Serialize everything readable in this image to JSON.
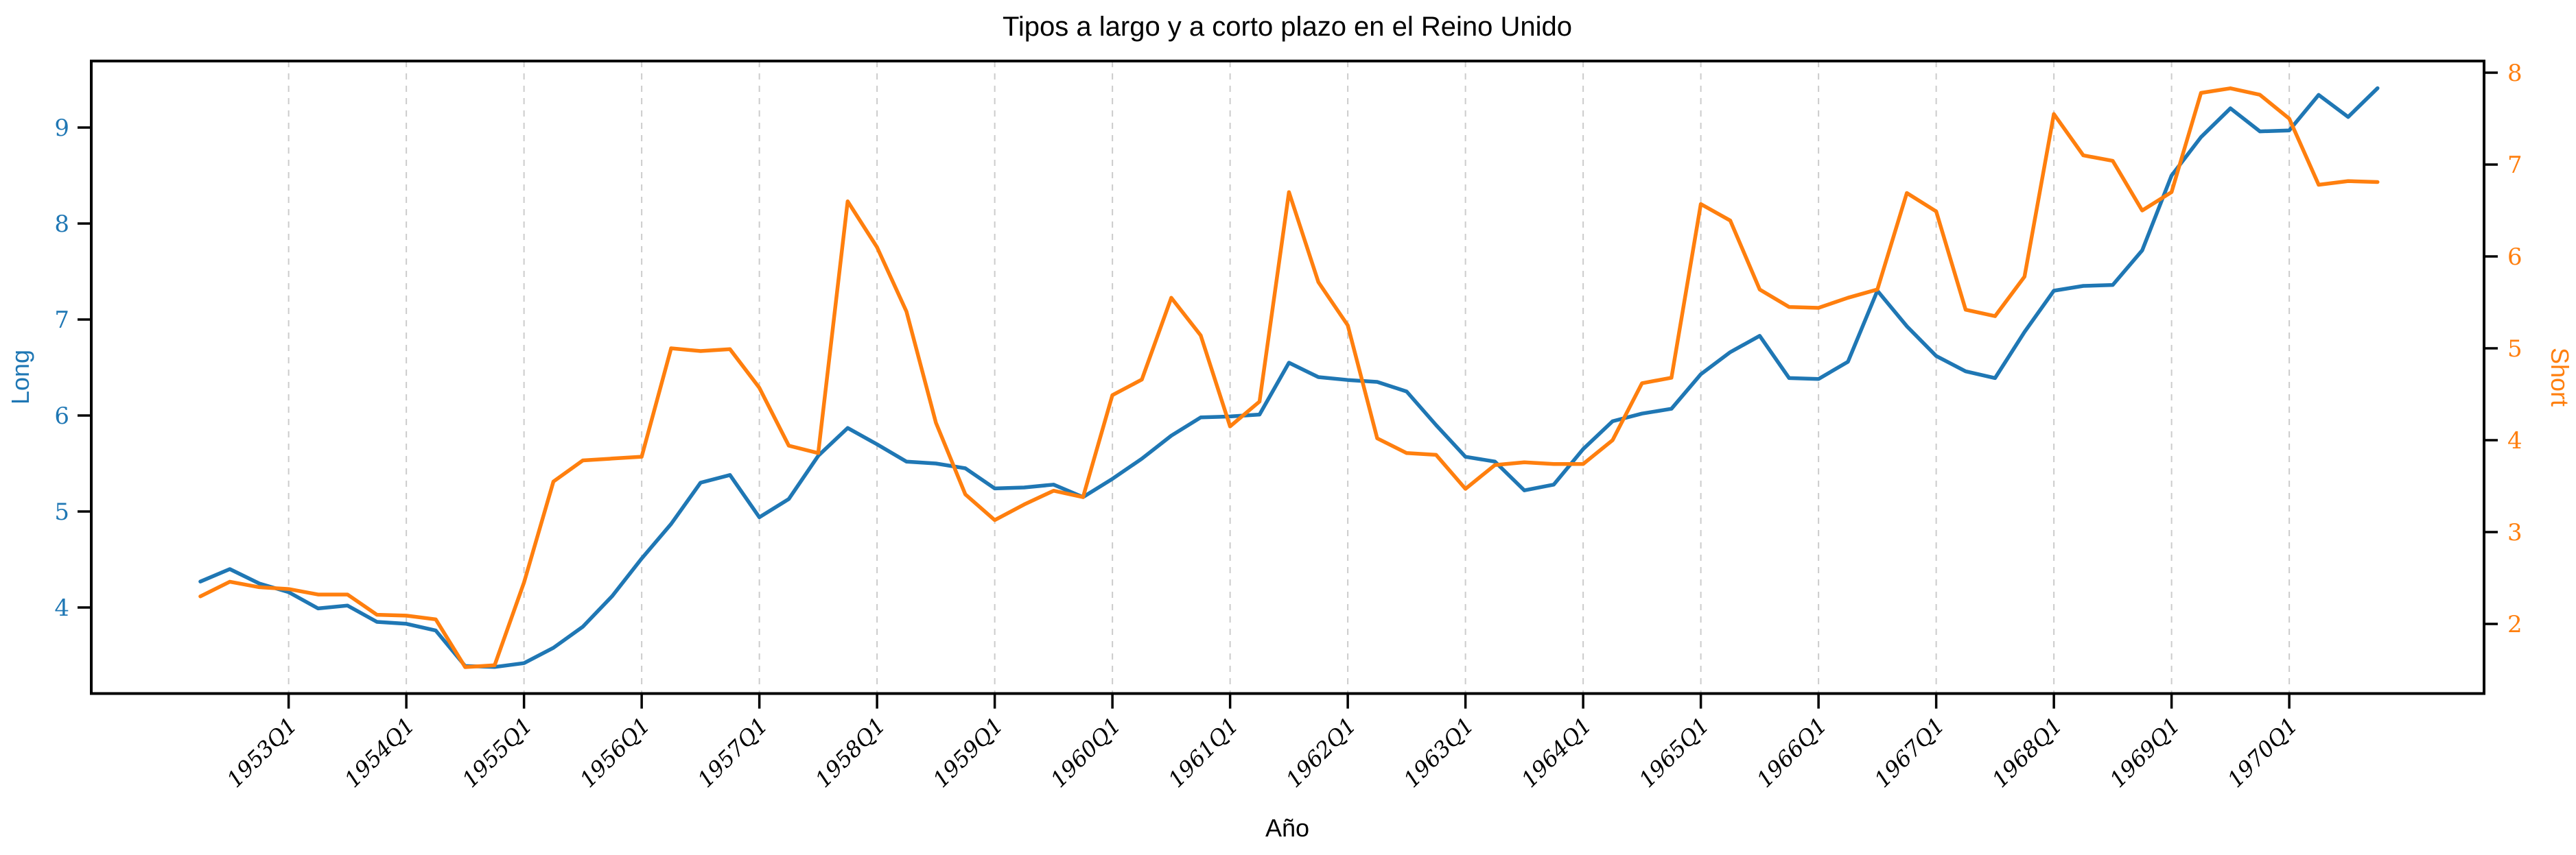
{
  "title": "Tipos a largo y a corto plazo en el Reino Unido",
  "chart_data": {
    "type": "line",
    "title": "Tipos a largo y a corto plazo en el Reino Unido",
    "xlabel": "Año",
    "grid": "vertical-dashed-per-year",
    "legend_position": "none",
    "frequency": "quarterly",
    "x": [
      "1952Q2",
      "1952Q3",
      "1952Q4",
      "1953Q1",
      "1953Q2",
      "1953Q3",
      "1953Q4",
      "1954Q1",
      "1954Q2",
      "1954Q3",
      "1954Q4",
      "1955Q1",
      "1955Q2",
      "1955Q3",
      "1955Q4",
      "1956Q1",
      "1956Q2",
      "1956Q3",
      "1956Q4",
      "1957Q1",
      "1957Q2",
      "1957Q3",
      "1957Q4",
      "1958Q1",
      "1958Q2",
      "1958Q3",
      "1958Q4",
      "1959Q1",
      "1959Q2",
      "1959Q3",
      "1959Q4",
      "1960Q1",
      "1960Q2",
      "1960Q3",
      "1960Q4",
      "1961Q1",
      "1961Q2",
      "1961Q3",
      "1961Q4",
      "1962Q1",
      "1962Q2",
      "1962Q3",
      "1962Q4",
      "1963Q1",
      "1963Q2",
      "1963Q3",
      "1963Q4",
      "1964Q1",
      "1964Q2",
      "1964Q3",
      "1964Q4",
      "1965Q1",
      "1965Q2",
      "1965Q3",
      "1965Q4",
      "1966Q1",
      "1966Q2",
      "1966Q3",
      "1966Q4",
      "1967Q1",
      "1967Q2",
      "1967Q3",
      "1967Q4",
      "1968Q1",
      "1968Q2",
      "1968Q3",
      "1968Q4",
      "1969Q1",
      "1969Q2",
      "1969Q3",
      "1969Q4",
      "1970Q1",
      "1970Q2",
      "1970Q3",
      "1970Q4"
    ],
    "x_tick_labels": [
      "1953Q1",
      "1954Q1",
      "1955Q1",
      "1956Q1",
      "1957Q1",
      "1958Q1",
      "1959Q1",
      "1960Q1",
      "1961Q1",
      "1962Q1",
      "1963Q1",
      "1964Q1",
      "1965Q1",
      "1966Q1",
      "1967Q1",
      "1968Q1",
      "1969Q1",
      "1970Q1"
    ],
    "series": [
      {
        "name": "Long",
        "axis": "left",
        "color": "#1f77b4",
        "values": [
          4.27,
          4.4,
          4.25,
          4.16,
          3.99,
          4.02,
          3.85,
          3.83,
          3.76,
          3.39,
          3.38,
          3.42,
          3.58,
          3.8,
          4.12,
          4.51,
          4.87,
          5.3,
          5.38,
          4.94,
          5.13,
          5.58,
          5.87,
          5.7,
          5.52,
          5.5,
          5.45,
          5.24,
          5.25,
          5.28,
          5.15,
          5.34,
          5.55,
          5.79,
          5.98,
          5.99,
          6.01,
          6.55,
          6.4,
          6.37,
          6.35,
          6.25,
          5.9,
          5.57,
          5.52,
          5.22,
          5.28,
          5.65,
          5.94,
          6.02,
          6.07,
          6.43,
          6.66,
          6.83,
          6.39,
          6.38,
          6.56,
          7.3,
          6.93,
          6.62,
          6.46,
          6.39,
          6.87,
          7.3,
          7.35,
          7.36,
          7.72,
          8.5,
          8.9,
          9.2,
          8.96,
          8.97,
          9.34,
          9.11,
          9.41
        ]
      },
      {
        "name": "Short",
        "axis": "right",
        "color": "#ff7f0e",
        "values": [
          2.3,
          2.46,
          2.4,
          2.38,
          2.32,
          2.32,
          2.1,
          2.09,
          2.05,
          1.53,
          1.55,
          2.45,
          3.55,
          3.78,
          3.8,
          3.82,
          5.0,
          4.97,
          4.99,
          4.57,
          3.94,
          3.86,
          6.6,
          6.1,
          5.4,
          4.19,
          3.41,
          3.13,
          3.3,
          3.45,
          3.38,
          4.49,
          4.66,
          5.55,
          5.14,
          4.15,
          4.42,
          6.7,
          5.72,
          5.25,
          4.02,
          3.86,
          3.84,
          3.47,
          3.73,
          3.76,
          3.74,
          3.74,
          4.0,
          4.62,
          4.68,
          6.57,
          6.39,
          5.64,
          5.45,
          5.44,
          5.55,
          5.64,
          6.69,
          6.49,
          5.42,
          5.35,
          5.78,
          7.55,
          7.1,
          7.04,
          6.5,
          6.7,
          7.78,
          7.83,
          7.76,
          7.5,
          6.78,
          6.82,
          6.81
        ]
      }
    ],
    "left_axis": {
      "label": "Long",
      "color": "#1f77b4",
      "ticks": [
        4,
        5,
        6,
        7,
        8,
        9
      ],
      "range": [
        3.1,
        9.69
      ]
    },
    "right_axis": {
      "label": "Short",
      "color": "#ff7f0e",
      "ticks": [
        2,
        3,
        4,
        5,
        6,
        7,
        8
      ],
      "range": [
        1.24,
        8.13
      ]
    },
    "x_axis": {
      "label": "Año",
      "tick_rotation_deg": 45,
      "range_quarter_index": [
        -3.71,
        77.6
      ]
    }
  },
  "style": {
    "background": "#ffffff",
    "frame_color": "#000000",
    "gridline_color": "#cccccc",
    "long_color": "#1f77b4",
    "short_color": "#ff7f0e"
  }
}
